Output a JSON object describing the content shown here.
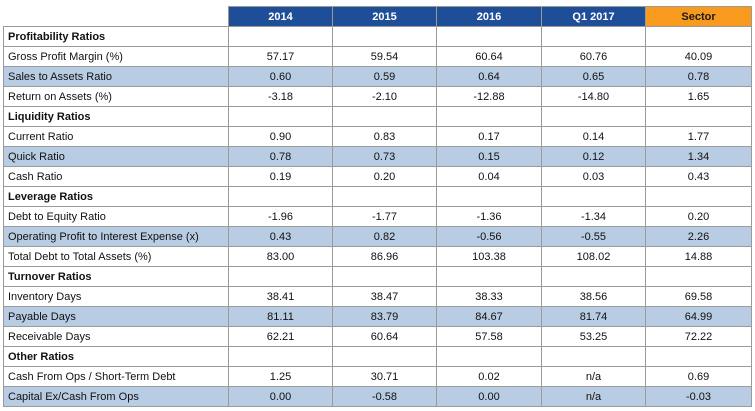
{
  "headers": [
    "2014",
    "2015",
    "2016",
    "Q1 2017",
    "Sector"
  ],
  "sections": [
    {
      "title": "Profitability Ratios",
      "rows": [
        {
          "label": "Gross Profit Margin (%)",
          "values": [
            "57.17",
            "59.54",
            "60.64",
            "60.76",
            "40.09"
          ],
          "shaded": false
        },
        {
          "label": "Sales to Assets Ratio",
          "values": [
            "0.60",
            "0.59",
            "0.64",
            "0.65",
            "0.78"
          ],
          "shaded": true
        },
        {
          "label": "Return on Assets (%)",
          "values": [
            "-3.18",
            "-2.10",
            "-12.88",
            "-14.80",
            "1.65"
          ],
          "shaded": false
        }
      ]
    },
    {
      "title": "Liquidity Ratios",
      "rows": [
        {
          "label": "Current Ratio",
          "values": [
            "0.90",
            "0.83",
            "0.17",
            "0.14",
            "1.77"
          ],
          "shaded": false
        },
        {
          "label": "Quick Ratio",
          "values": [
            "0.78",
            "0.73",
            "0.15",
            "0.12",
            "1.34"
          ],
          "shaded": true
        },
        {
          "label": "Cash Ratio",
          "values": [
            "0.19",
            "0.20",
            "0.04",
            "0.03",
            "0.43"
          ],
          "shaded": false
        }
      ]
    },
    {
      "title": "Leverage Ratios",
      "rows": [
        {
          "label": "Debt to Equity Ratio",
          "values": [
            "-1.96",
            "-1.77",
            "-1.36",
            "-1.34",
            "0.20"
          ],
          "shaded": false
        },
        {
          "label": "Operating Profit to Interest Expense (x)",
          "values": [
            "0.43",
            "0.82",
            "-0.56",
            "-0.55",
            "2.26"
          ],
          "shaded": true
        },
        {
          "label": "Total Debt to Total Assets (%)",
          "values": [
            "83.00",
            "86.96",
            "103.38",
            "108.02",
            "14.88"
          ],
          "shaded": false
        }
      ]
    },
    {
      "title": "Turnover Ratios",
      "rows": [
        {
          "label": "Inventory Days",
          "values": [
            "38.41",
            "38.47",
            "38.33",
            "38.56",
            "69.58"
          ],
          "shaded": false
        },
        {
          "label": "Payable Days",
          "values": [
            "81.11",
            "83.79",
            "84.67",
            "81.74",
            "64.99"
          ],
          "shaded": true
        },
        {
          "label": "Receivable Days",
          "values": [
            "62.21",
            "60.64",
            "57.58",
            "53.25",
            "72.22"
          ],
          "shaded": false
        }
      ]
    },
    {
      "title": "Other Ratios",
      "rows": [
        {
          "label": "Cash From Ops / Short-Term Debt",
          "values": [
            "1.25",
            "30.71",
            "0.02",
            "n/a",
            "0.69"
          ],
          "shaded": false
        },
        {
          "label": "Capital Ex/Cash From Ops",
          "values": [
            "0.00",
            "-0.58",
            "0.00",
            "n/a",
            "-0.03"
          ],
          "shaded": true
        }
      ]
    }
  ]
}
